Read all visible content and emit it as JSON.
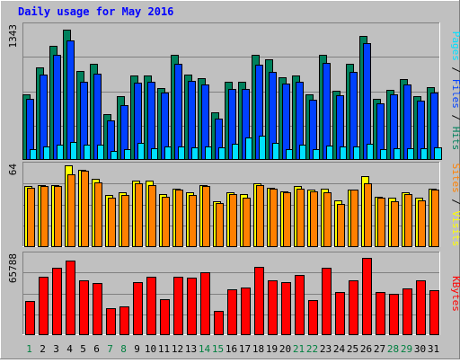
{
  "title": "Daily usage for May 2016",
  "colors": {
    "background": "#c0c0c0",
    "title": "#0000ff",
    "hits": "#00805c",
    "files": "#0040ff",
    "pages": "#00e0ff",
    "visits": "#ffff00",
    "sites": "#ff8000",
    "kbytes": "#ff0000",
    "day_weekday": "#008040",
    "day_normal": "#000000"
  },
  "chart_data": [
    {
      "type": "bar",
      "title": "Daily usage for May 2016",
      "panel": "top",
      "ymax_label": "1343",
      "ylim": [
        0,
        1343
      ],
      "legend": [
        "Pages",
        "Files",
        "Hits"
      ],
      "legend_separator": "/",
      "categories": [
        "1",
        "2",
        "3",
        "4",
        "5",
        "6",
        "7",
        "8",
        "9",
        "10",
        "11",
        "12",
        "13",
        "14",
        "15",
        "16",
        "17",
        "18",
        "19",
        "20",
        "21",
        "22",
        "23",
        "24",
        "25",
        "26",
        "27",
        "28",
        "29",
        "30",
        "31"
      ],
      "series": [
        {
          "name": "Hits",
          "values": [
            650,
            920,
            1140,
            1300,
            880,
            955,
            450,
            635,
            835,
            840,
            715,
            1045,
            845,
            815,
            465,
            775,
            775,
            1050,
            1000,
            820,
            835,
            645,
            1045,
            685,
            955,
            1235,
            605,
            695,
            805,
            630,
            725
          ]
        },
        {
          "name": "Files",
          "values": [
            600,
            850,
            1045,
            1190,
            775,
            855,
            390,
            545,
            765,
            775,
            665,
            955,
            780,
            745,
            405,
            700,
            700,
            945,
            875,
            760,
            775,
            595,
            960,
            640,
            870,
            1165,
            555,
            650,
            745,
            590,
            665
          ]
        },
        {
          "name": "Pages",
          "values": [
            100,
            130,
            140,
            175,
            140,
            140,
            85,
            95,
            165,
            105,
            125,
            125,
            115,
            125,
            115,
            150,
            215,
            230,
            165,
            100,
            145,
            100,
            135,
            130,
            125,
            150,
            95,
            105,
            105,
            105,
            115
          ]
        }
      ]
    },
    {
      "type": "bar",
      "panel": "middle",
      "ymax_label": "64",
      "ylim": [
        0,
        64
      ],
      "legend": [
        "Sites",
        "Visits"
      ],
      "legend_separator": "/",
      "categories": [
        "1",
        "2",
        "3",
        "4",
        "5",
        "6",
        "7",
        "8",
        "9",
        "10",
        "11",
        "12",
        "13",
        "14",
        "15",
        "16",
        "17",
        "18",
        "19",
        "20",
        "21",
        "22",
        "23",
        "24",
        "25",
        "26",
        "27",
        "28",
        "29",
        "30",
        "31"
      ],
      "series": [
        {
          "name": "Visits",
          "values": [
            47,
            48,
            48,
            63,
            60,
            53,
            40,
            42,
            51,
            51,
            41,
            45,
            42,
            48,
            35,
            42,
            41,
            49,
            46,
            43,
            47,
            44,
            45,
            36,
            44,
            55,
            39,
            38,
            42,
            38,
            45
          ]
        },
        {
          "name": "Sites",
          "values": [
            46,
            47,
            47,
            56,
            59,
            50,
            38,
            40,
            49,
            48,
            39,
            44,
            40,
            47,
            34,
            41,
            38,
            48,
            45,
            42,
            45,
            43,
            42,
            33,
            44,
            49,
            38,
            35,
            41,
            36,
            44
          ]
        }
      ]
    },
    {
      "type": "bar",
      "panel": "bottom",
      "ymax_label": "65788",
      "ylim": [
        0,
        65788
      ],
      "legend": [
        "KBytes"
      ],
      "categories": [
        "1",
        "2",
        "3",
        "4",
        "5",
        "6",
        "7",
        "8",
        "9",
        "10",
        "11",
        "12",
        "13",
        "14",
        "15",
        "16",
        "17",
        "18",
        "19",
        "20",
        "21",
        "22",
        "23",
        "24",
        "25",
        "26",
        "27",
        "28",
        "29",
        "30",
        "31"
      ],
      "series": [
        {
          "name": "KBytes",
          "values": [
            27000,
            47500,
            54500,
            60500,
            44000,
            42500,
            21500,
            23000,
            43000,
            47500,
            28500,
            47500,
            46500,
            51000,
            19500,
            37000,
            38500,
            55500,
            44000,
            43000,
            48500,
            28000,
            54500,
            34500,
            44000,
            62500,
            35000,
            33500,
            37500,
            44000,
            36500
          ]
        }
      ]
    }
  ],
  "x_axis": {
    "labels": [
      "1",
      "2",
      "3",
      "4",
      "5",
      "6",
      "7",
      "8",
      "9",
      "10",
      "11",
      "12",
      "13",
      "14",
      "15",
      "16",
      "17",
      "18",
      "19",
      "20",
      "21",
      "22",
      "23",
      "24",
      "25",
      "26",
      "27",
      "28",
      "29",
      "30",
      "31"
    ],
    "weekend_days": [
      "1",
      "7",
      "8",
      "14",
      "15",
      "21",
      "22",
      "28",
      "29"
    ]
  }
}
